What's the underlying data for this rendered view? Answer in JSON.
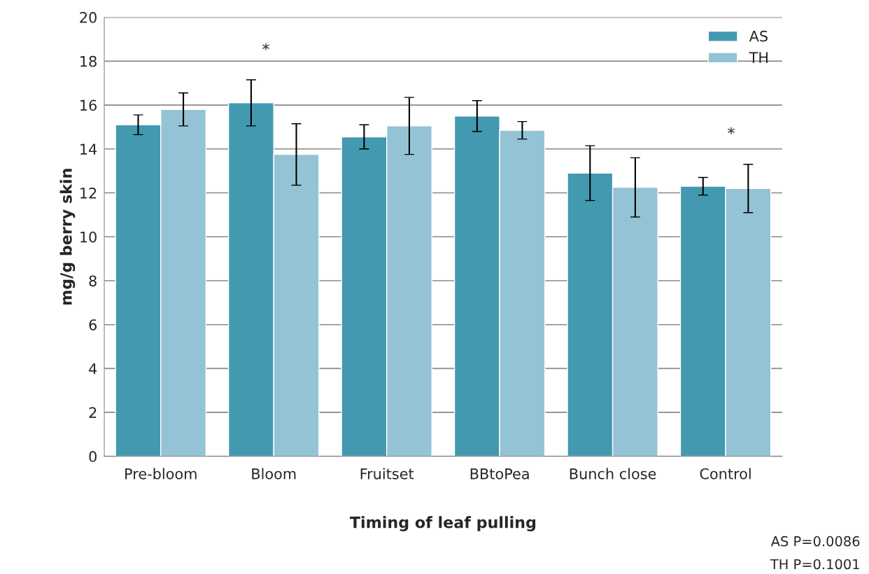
{
  "chart_data": {
    "type": "bar",
    "xlabel": "Timing of leaf pulling",
    "ylabel": "mg/g berry skin",
    "categories": [
      "Pre-bloom",
      "Bloom",
      "Fruitset",
      "BBtoPea",
      "Bunch close",
      "Control"
    ],
    "series": [
      {
        "name": "AS",
        "color": "#4399b0",
        "values": [
          15.1,
          16.1,
          14.55,
          15.5,
          12.9,
          12.3
        ],
        "errors": [
          0.45,
          1.05,
          0.55,
          0.7,
          1.25,
          0.4
        ]
      },
      {
        "name": "TH",
        "color": "#94c3d5",
        "values": [
          15.8,
          13.75,
          15.05,
          14.85,
          12.25,
          12.2
        ],
        "errors": [
          0.75,
          1.4,
          1.3,
          0.4,
          1.35,
          1.1
        ]
      }
    ],
    "ylim": [
      0,
      20
    ],
    "yticks": [
      0,
      2,
      4,
      6,
      8,
      10,
      12,
      14,
      16,
      18,
      20
    ],
    "grid": "y",
    "legend": "top right",
    "annotations": [
      "*",
      "*",
      "AS P=0.0086",
      "TH P=0.1001"
    ]
  }
}
